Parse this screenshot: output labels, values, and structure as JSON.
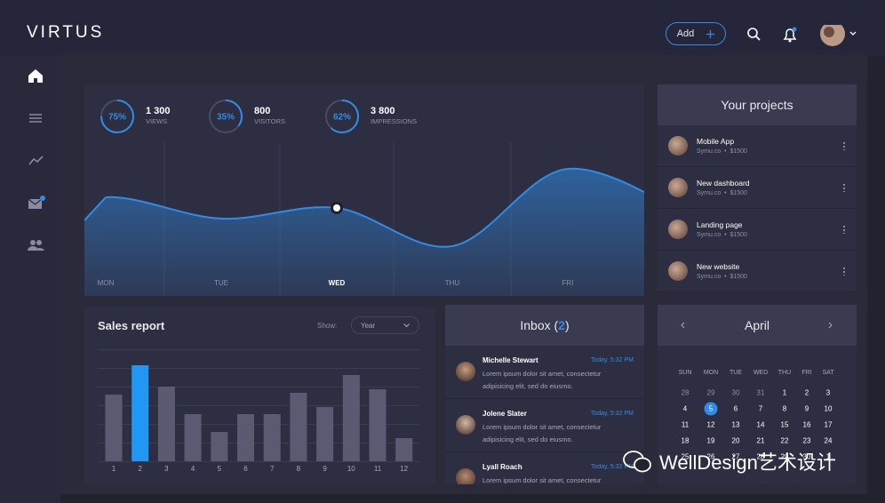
{
  "header": {
    "logo": "VIRTUS",
    "add_button": "Add"
  },
  "stats": [
    {
      "percent": 75,
      "percent_label": "75%",
      "value": "1 300",
      "label": "VIEWS"
    },
    {
      "percent": 35,
      "percent_label": "35%",
      "value": "800",
      "label": "VISITORS"
    },
    {
      "percent": 62,
      "percent_label": "62%",
      "value": "3 800",
      "label": "IMPRESSIONS"
    }
  ],
  "traffic_chart": {
    "type": "area",
    "categories": [
      "MON",
      "TUE",
      "WED",
      "THU",
      "FRI"
    ],
    "values": [
      111,
      87,
      99,
      56,
      143
    ],
    "color": "#2e8de6",
    "selected_index": 2
  },
  "projects": {
    "title": "Your projects",
    "items": [
      {
        "name": "Mobile App",
        "meta": "Symu.co  •  $1500"
      },
      {
        "name": "New dashboard",
        "meta": "Symu.co  •  $1500"
      },
      {
        "name": "Landing page",
        "meta": "Symu.co  •  $1500"
      },
      {
        "name": "New website",
        "meta": "Symu.co  •  $1500"
      }
    ]
  },
  "sales_report": {
    "title": "Sales report",
    "show_label": "Show:",
    "period": "Year",
    "chart": {
      "type": "bar",
      "categories": [
        "1",
        "2",
        "3",
        "4",
        "5",
        "6",
        "7",
        "8",
        "9",
        "10",
        "11",
        "12"
      ],
      "values": [
        75,
        108,
        84,
        53,
        33,
        53,
        53,
        77,
        61,
        97,
        81,
        26
      ],
      "color": "#5b5a72",
      "highlight_index": 1,
      "highlight_color": "#2196f3"
    }
  },
  "inbox": {
    "title": [
      "Inbox (",
      "2",
      ")"
    ],
    "messages": [
      {
        "name": "Michelle Stewart",
        "time": "Today, 5:32 PM",
        "text": "Lorem ipsum dolor sit amet, consectetur adipisicing elit, sed do eiusmo."
      },
      {
        "name": "Jolene Slater",
        "time": "Today, 5:32 PM",
        "text": "Lorem ipsum dolor sit amet, consectetur adipisicing elit, sed do eiusmo."
      },
      {
        "name": "Lyall Roach",
        "time": "Today, 5:32 PM",
        "text": "Lorem ipsum dolor sit amet, consectetur adipisicing elit, sed do eiusmo."
      }
    ]
  },
  "calendar": {
    "month": "April",
    "weekdays": [
      "SUN",
      "MON",
      "TUE",
      "WED",
      "THU",
      "FRI",
      "SAT"
    ],
    "weeks": [
      [
        "28",
        "29",
        "30",
        "31",
        "1",
        "2",
        "3"
      ],
      [
        "4",
        "5",
        "6",
        "7",
        "8",
        "9",
        "10"
      ],
      [
        "11",
        "12",
        "13",
        "14",
        "15",
        "16",
        "17"
      ],
      [
        "18",
        "19",
        "20",
        "21",
        "22",
        "23",
        "24"
      ],
      [
        "25",
        "26",
        "27",
        "28",
        "29",
        "30",
        "1"
      ]
    ],
    "today": "5"
  },
  "watermark": "WellDesign艺术设计"
}
